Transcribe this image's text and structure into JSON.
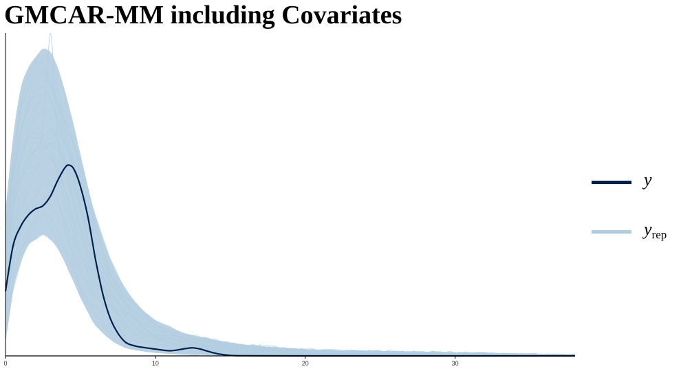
{
  "title": "GMCAR-MM including Covariates",
  "colors": {
    "y": "#011f4b",
    "yrep": "#b3cde0",
    "axis": "#000000"
  },
  "legend": {
    "placement": "right",
    "items": [
      {
        "main": "y",
        "sub": "",
        "color_key": "y"
      },
      {
        "main": "y",
        "sub": "rep",
        "color_key": "yrep"
      }
    ]
  },
  "chart_data": {
    "type": "line",
    "title": "GMCAR-MM including Covariates",
    "xlabel": "",
    "ylabel": "",
    "xlim": [
      0,
      38
    ],
    "ylim": [
      0,
      0.2
    ],
    "x_ticks": [
      0,
      10,
      20,
      30
    ],
    "y_ticks_shown": false,
    "grid": false,
    "series": [
      {
        "name": "y",
        "color": "#011f4b",
        "x": [
          0,
          0.5,
          1,
          1.5,
          2,
          2.5,
          3,
          3.5,
          4,
          4.3,
          4.6,
          5,
          5.5,
          6,
          6.5,
          7,
          7.5,
          8,
          8.5,
          9,
          10,
          11,
          12,
          12.5,
          13,
          14,
          15,
          16,
          20,
          25,
          30,
          35,
          38
        ],
        "values": [
          0.04,
          0.068,
          0.08,
          0.087,
          0.091,
          0.093,
          0.099,
          0.109,
          0.117,
          0.118,
          0.115,
          0.105,
          0.086,
          0.06,
          0.038,
          0.023,
          0.014,
          0.0085,
          0.0065,
          0.0055,
          0.0042,
          0.0032,
          0.0045,
          0.005,
          0.0042,
          0.0016,
          0.0003,
          0.0001,
          0.0,
          0.0,
          0.0,
          0.0,
          0.0
        ]
      }
    ],
    "yrep_band": {
      "name": "yrep",
      "color": "#b3cde0",
      "x": [
        0,
        0.5,
        1,
        1.5,
        2,
        2.5,
        3,
        3.5,
        4,
        4.5,
        5,
        5.5,
        6,
        7,
        8,
        9,
        10,
        11,
        12,
        14,
        16,
        20,
        25,
        30,
        35,
        38
      ],
      "lower": [
        0.008,
        0.04,
        0.057,
        0.068,
        0.072,
        0.075,
        0.072,
        0.066,
        0.057,
        0.047,
        0.036,
        0.027,
        0.019,
        0.01,
        0.005,
        0.003,
        0.002,
        0.0012,
        0.0008,
        0.0004,
        0.0002,
        0.0001,
        0.0,
        0.0,
        0.0,
        0.0
      ],
      "upper": [
        0.09,
        0.135,
        0.165,
        0.178,
        0.185,
        0.19,
        0.188,
        0.178,
        0.163,
        0.145,
        0.125,
        0.105,
        0.087,
        0.06,
        0.042,
        0.03,
        0.022,
        0.018,
        0.014,
        0.01,
        0.007,
        0.004,
        0.003,
        0.002,
        0.001,
        0.0005
      ],
      "peak_x": 3,
      "peak_value": 0.2
    }
  }
}
